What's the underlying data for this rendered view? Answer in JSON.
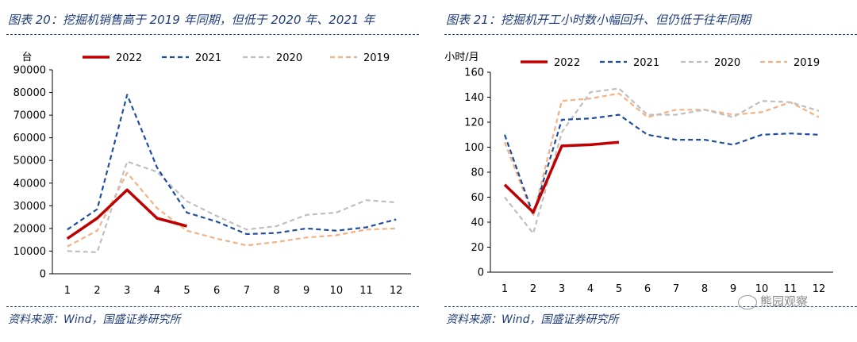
{
  "charts": [
    {
      "title": "图表 20：挖掘机销售高于 2019 年同期，但低于 2020 年、2021 年",
      "source": "资料来源：Wind，国盛证券研究所",
      "chart_data": {
        "type": "line",
        "ylabel": "台",
        "ylim": [
          0,
          90000
        ],
        "yticks": [
          "0",
          "10000",
          "20000",
          "30000",
          "40000",
          "50000",
          "60000",
          "70000",
          "80000",
          "90000"
        ],
        "categories": [
          "1",
          "2",
          "3",
          "4",
          "5",
          "6",
          "7",
          "8",
          "9",
          "10",
          "11",
          "12"
        ],
        "series": [
          {
            "name": "2022",
            "color": "#c00000",
            "dash": "solid",
            "values": [
              15500,
              24500,
              37000,
              24500,
              21000,
              null,
              null,
              null,
              null,
              null,
              null,
              null
            ]
          },
          {
            "name": "2021",
            "color": "#1f4e9c",
            "dash": "dashed",
            "values": [
              19500,
              28500,
              79000,
              47000,
              27000,
              23000,
              17500,
              18000,
              20000,
              19000,
              20500,
              24000
            ]
          },
          {
            "name": "2020",
            "color": "#bfbfbf",
            "dash": "dashed",
            "values": [
              10000,
              9500,
              49500,
              45000,
              32000,
              25500,
              19500,
              21000,
              26000,
              27000,
              32500,
              31500
            ]
          },
          {
            "name": "2019",
            "color": "#f4b183",
            "dash": "dashed",
            "values": [
              12000,
              19000,
              44500,
              29000,
              19000,
              15500,
              12500,
              14000,
              16000,
              17000,
              19500,
              20000
            ]
          }
        ]
      }
    },
    {
      "title": "图表 21：挖掘机开工小时数小幅回升、但仍低于往年同期",
      "source": "资料来源：Wind，国盛证券研究所",
      "chart_data": {
        "type": "line",
        "ylabel": "小时/月",
        "ylim": [
          0,
          160
        ],
        "yticks": [
          "0",
          "20",
          "40",
          "60",
          "80",
          "100",
          "120",
          "140",
          "160"
        ],
        "categories": [
          "1",
          "2",
          "3",
          "4",
          "5",
          "6",
          "7",
          "8",
          "9",
          "10",
          "11",
          "12"
        ],
        "series": [
          {
            "name": "2022",
            "color": "#c00000",
            "dash": "solid",
            "values": [
              70,
              48,
              101,
              102,
              104,
              null,
              null,
              null,
              null,
              null,
              null,
              null
            ]
          },
          {
            "name": "2021",
            "color": "#1f4e9c",
            "dash": "dashed",
            "values": [
              110,
              46,
              122,
              123,
              126,
              110,
              106,
              106,
              102,
              110,
              111,
              110
            ]
          },
          {
            "name": "2020",
            "color": "#bfbfbf",
            "dash": "dashed",
            "values": [
              60,
              31,
              112,
              144,
              147,
              126,
              126,
              130,
              124,
              137,
              136,
              129
            ]
          },
          {
            "name": "2019",
            "color": "#f4b183",
            "dash": "dashed",
            "values": [
              104,
              45,
              137,
              139,
              143,
              124,
              130,
              130,
              126,
              128,
              136,
              124
            ]
          }
        ]
      }
    }
  ],
  "watermark": "熊园观察"
}
